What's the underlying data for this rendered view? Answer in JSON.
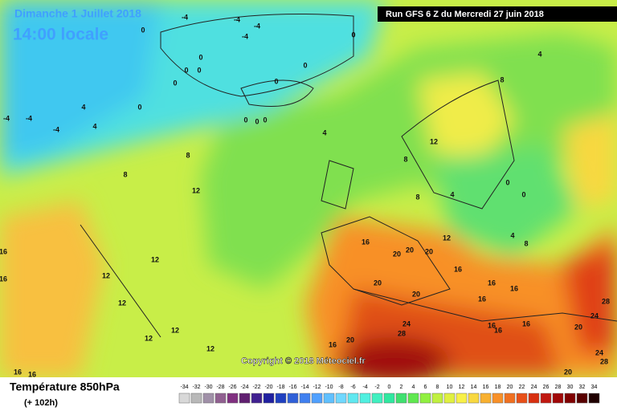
{
  "header": {
    "title": "Dimanche 1 Juillet 2018",
    "time": "14:00 locale",
    "run": "Run GFS 6 Z du Mercredi 27 juin 2018"
  },
  "map": {
    "copyright": "Copyright © 2018 Méteociel.fr",
    "contour_labels": [
      -4,
      0,
      -4,
      -4,
      -4,
      0,
      0,
      0,
      0,
      0,
      0,
      0,
      0,
      0,
      0,
      0,
      4,
      4,
      -4,
      -4,
      -4,
      4,
      4,
      8,
      8,
      8,
      12,
      12,
      8,
      8,
      4,
      0,
      0,
      4,
      8,
      16,
      20,
      20,
      20,
      12,
      16,
      12,
      12,
      12,
      12,
      12,
      12,
      16,
      16,
      20,
      20,
      16,
      16,
      16,
      24,
      28,
      20,
      16,
      16,
      16,
      16,
      28,
      24,
      20,
      24,
      28,
      20,
      16,
      16
    ]
  },
  "footer": {
    "variable": "Température 850hPa",
    "lead": "(+ 102h)"
  },
  "legend": {
    "values": [
      -34,
      -32,
      -30,
      -28,
      -26,
      -24,
      -22,
      -20,
      -18,
      -16,
      -14,
      -12,
      -10,
      -8,
      -6,
      -4,
      -2,
      0,
      2,
      4,
      6,
      8,
      10,
      12,
      14,
      16,
      18,
      20,
      22,
      24,
      26,
      28,
      30,
      32,
      34
    ],
    "colors": [
      "#d8d8d8",
      "#b8b8b8",
      "#a090a8",
      "#906090",
      "#803080",
      "#602070",
      "#402090",
      "#2020a0",
      "#2040c0",
      "#3060d8",
      "#4080f0",
      "#50a0ff",
      "#60c0ff",
      "#70d8ff",
      "#60e8f0",
      "#50f0e0",
      "#40f0c0",
      "#30e8a0",
      "#40e070",
      "#60e850",
      "#90f040",
      "#c0f040",
      "#e0f040",
      "#f8f048",
      "#f8d840",
      "#f8b030",
      "#f89028",
      "#f07020",
      "#e85018",
      "#d83010",
      "#c01810",
      "#a00808",
      "#800000",
      "#580000",
      "#200000"
    ]
  }
}
